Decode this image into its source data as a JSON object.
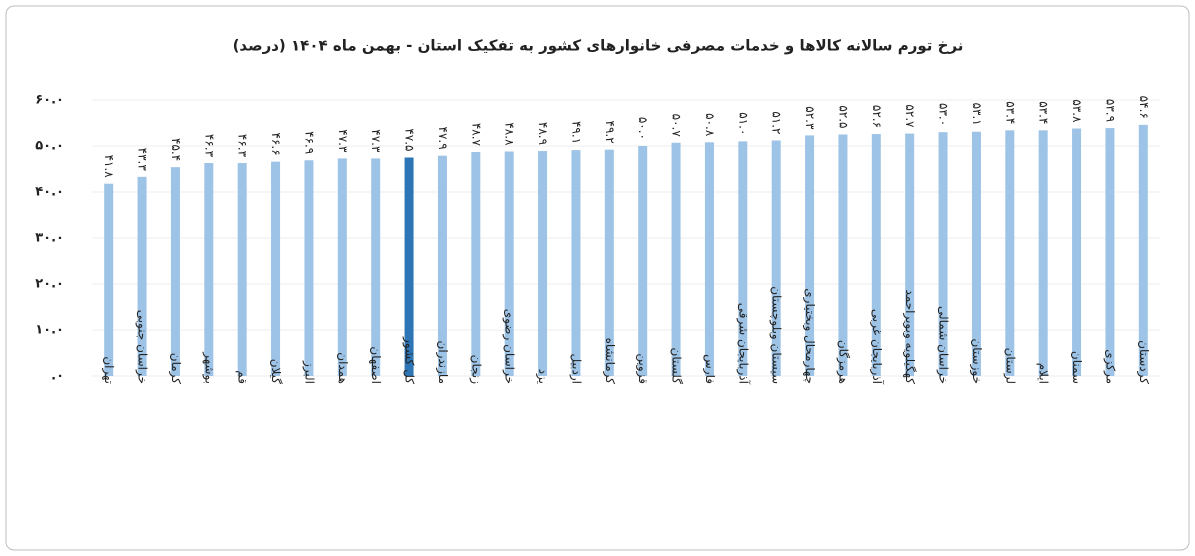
{
  "chart_data": {
    "type": "bar",
    "title": "نرخ تورم سالانه کالاها و خدمات مصرفی خانوارهای کشور به تفکیک استان - بهمن ماه ۱۴۰۴ (درصد)",
    "categories": [
      "تهران",
      "خراسان جنوبی",
      "کرمان",
      "بوشهر",
      "قم",
      "گیلان",
      "البرز",
      "همدان",
      "اصفهان",
      "کل کشور",
      "مازندران",
      "زنجان",
      "خراسان رضوی",
      "یزد",
      "اردبیل",
      "کرمانشاه",
      "قزوین",
      "گلستان",
      "فارس",
      "آذربایجان شرقی",
      "سیستان وبلوچستان",
      "چهارمحال وبختیاری",
      "هرمزگان",
      "آذربایجان غربی",
      "کهگیلویه وبویراحمد",
      "خراسان شمالی",
      "خوزستان",
      "لرستان",
      "ایلام",
      "سمنان",
      "مرکزی",
      "کردستان"
    ],
    "values": [
      41.8,
      43.3,
      45.4,
      46.3,
      46.3,
      46.6,
      46.9,
      47.3,
      47.3,
      47.5,
      47.9,
      48.7,
      48.8,
      48.9,
      49.1,
      49.2,
      50.0,
      50.7,
      50.8,
      51.0,
      51.2,
      52.3,
      52.5,
      52.6,
      52.7,
      53.0,
      53.1,
      53.4,
      53.4,
      53.8,
      53.9,
      54.6
    ],
    "value_labels": [
      "۴۱.۸",
      "۴۳.۳",
      "۴۵.۴",
      "۴۶.۳",
      "۴۶.۳",
      "۴۶.۶",
      "۴۶.۹",
      "۴۷.۳",
      "۴۷.۳",
      "۴۷.۵",
      "۴۷.۹",
      "۴۸.۷",
      "۴۸.۸",
      "۴۸.۹",
      "۴۹.۱",
      "۴۹.۲",
      "۵۰.۰",
      "۵۰.۷",
      "۵۰.۸",
      "۵۱.۰",
      "۵۱.۲",
      "۵۲.۳",
      "۵۲.۵",
      "۵۲.۶",
      "۵۲.۷",
      "۵۳.۰",
      "۵۳.۱",
      "۵۳.۴",
      "۵۳.۴",
      "۵۳.۸",
      "۵۳.۹",
      "۵۴.۶"
    ],
    "colors": [
      "#9dc3e6",
      "#9dc3e6",
      "#9dc3e6",
      "#9dc3e6",
      "#9dc3e6",
      "#9dc3e6",
      "#9dc3e6",
      "#9dc3e6",
      "#9dc3e6",
      "#2e75b6",
      "#9dc3e6",
      "#9dc3e6",
      "#9dc3e6",
      "#9dc3e6",
      "#9dc3e6",
      "#9dc3e6",
      "#9dc3e6",
      "#9dc3e6",
      "#9dc3e6",
      "#9dc3e6",
      "#9dc3e6",
      "#9dc3e6",
      "#9dc3e6",
      "#9dc3e6",
      "#9dc3e6",
      "#9dc3e6",
      "#9dc3e6",
      "#9dc3e6",
      "#9dc3e6",
      "#9dc3e6",
      "#9dc3e6",
      "#9dc3e6"
    ],
    "ylim": [
      0,
      60
    ],
    "yticks": [
      {
        "value": 0,
        "label": ".۰"
      },
      {
        "value": 10,
        "label": "۱۰.۰"
      },
      {
        "value": 20,
        "label": "۲۰.۰"
      },
      {
        "value": 30,
        "label": "۳۰.۰"
      },
      {
        "value": 40,
        "label": "۴۰.۰"
      },
      {
        "value": 50,
        "label": "۵۰.۰"
      },
      {
        "value": 60,
        "label": "۶۰.۰"
      }
    ],
    "grid": true
  }
}
